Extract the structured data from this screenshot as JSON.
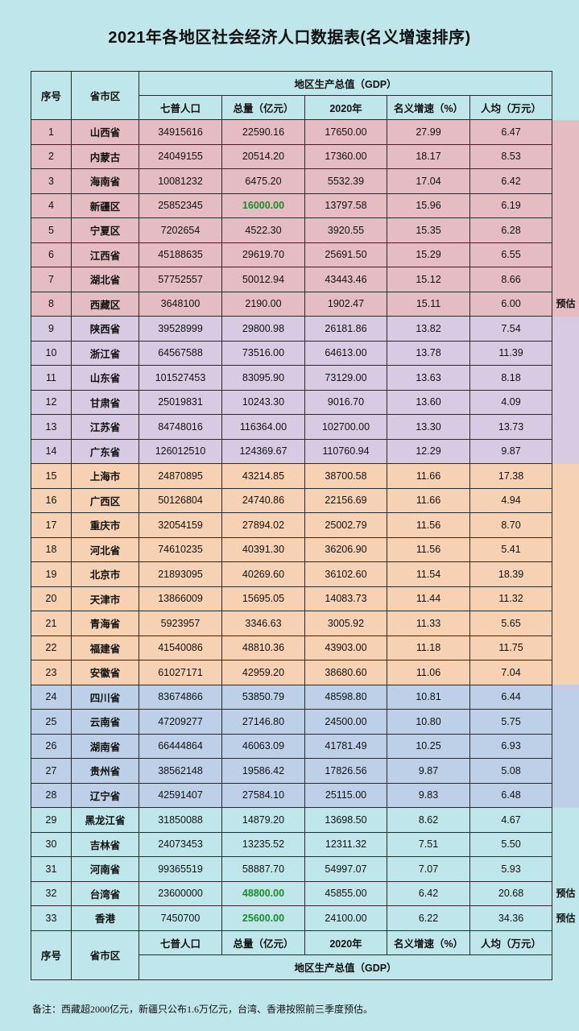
{
  "title": "2021年各地区社会经济人口数据表(名义增速排序)",
  "header": {
    "idx": "序号",
    "province": "省市区",
    "gdp_group": "地区生产总值（GDP）",
    "population": "七普人口",
    "gdp_total": "总量（亿元）",
    "gdp_2020": "2020年",
    "growth": "名义增速（%）",
    "per_capita": "人均（万元）"
  },
  "rows": [
    {
      "idx": "1",
      "province": "山西省",
      "population": "34915616",
      "gdp": "22590.16",
      "gdp2020": "17650.00",
      "growth": "27.99",
      "per": "6.47"
    },
    {
      "idx": "2",
      "province": "内蒙古",
      "population": "24049155",
      "gdp": "20514.20",
      "gdp2020": "17360.00",
      "growth": "18.17",
      "per": "8.53"
    },
    {
      "idx": "3",
      "province": "海南省",
      "population": "10081232",
      "gdp": "6475.20",
      "gdp2020": "5532.39",
      "growth": "17.04",
      "per": "6.42"
    },
    {
      "idx": "4",
      "province": "新疆区",
      "population": "25852345",
      "gdp": "16000.00",
      "gdp2020": "13797.58",
      "growth": "15.96",
      "per": "6.19"
    },
    {
      "idx": "5",
      "province": "宁夏区",
      "population": "7202654",
      "gdp": "4522.30",
      "gdp2020": "3920.55",
      "growth": "15.35",
      "per": "6.28"
    },
    {
      "idx": "6",
      "province": "江西省",
      "population": "45188635",
      "gdp": "29619.70",
      "gdp2020": "25691.50",
      "growth": "15.29",
      "per": "6.55"
    },
    {
      "idx": "7",
      "province": "湖北省",
      "population": "57752557",
      "gdp": "50012.94",
      "gdp2020": "43443.46",
      "growth": "15.12",
      "per": "8.66"
    },
    {
      "idx": "8",
      "province": "西藏区",
      "population": "3648100",
      "gdp": "2190.00",
      "gdp2020": "1902.47",
      "growth": "15.11",
      "per": "6.00"
    },
    {
      "idx": "9",
      "province": "陕西省",
      "population": "39528999",
      "gdp": "29800.98",
      "gdp2020": "26181.86",
      "growth": "13.82",
      "per": "7.54"
    },
    {
      "idx": "10",
      "province": "浙江省",
      "population": "64567588",
      "gdp": "73516.00",
      "gdp2020": "64613.00",
      "growth": "13.78",
      "per": "11.39"
    },
    {
      "idx": "11",
      "province": "山东省",
      "population": "101527453",
      "gdp": "83095.90",
      "gdp2020": "73129.00",
      "growth": "13.63",
      "per": "8.18"
    },
    {
      "idx": "12",
      "province": "甘肃省",
      "population": "25019831",
      "gdp": "10243.30",
      "gdp2020": "9016.70",
      "growth": "13.60",
      "per": "4.09"
    },
    {
      "idx": "13",
      "province": "江苏省",
      "population": "84748016",
      "gdp": "116364.00",
      "gdp2020": "102700.00",
      "growth": "13.30",
      "per": "13.73"
    },
    {
      "idx": "14",
      "province": "广东省",
      "population": "126012510",
      "gdp": "124369.67",
      "gdp2020": "110760.94",
      "growth": "12.29",
      "per": "9.87"
    },
    {
      "idx": "15",
      "province": "上海市",
      "population": "24870895",
      "gdp": "43214.85",
      "gdp2020": "38700.58",
      "growth": "11.66",
      "per": "17.38"
    },
    {
      "idx": "16",
      "province": "广西区",
      "population": "50126804",
      "gdp": "24740.86",
      "gdp2020": "22156.69",
      "growth": "11.66",
      "per": "4.94"
    },
    {
      "idx": "17",
      "province": "重庆市",
      "population": "32054159",
      "gdp": "27894.02",
      "gdp2020": "25002.79",
      "growth": "11.56",
      "per": "8.70"
    },
    {
      "idx": "18",
      "province": "河北省",
      "population": "74610235",
      "gdp": "40391.30",
      "gdp2020": "36206.90",
      "growth": "11.56",
      "per": "5.41"
    },
    {
      "idx": "19",
      "province": "北京市",
      "population": "21893095",
      "gdp": "40269.60",
      "gdp2020": "36102.60",
      "growth": "11.54",
      "per": "18.39"
    },
    {
      "idx": "20",
      "province": "天津市",
      "population": "13866009",
      "gdp": "15695.05",
      "gdp2020": "14083.73",
      "growth": "11.44",
      "per": "11.32"
    },
    {
      "idx": "21",
      "province": "青海省",
      "population": "5923957",
      "gdp": "3346.63",
      "gdp2020": "3005.92",
      "growth": "11.33",
      "per": "5.65"
    },
    {
      "idx": "22",
      "province": "福建省",
      "population": "41540086",
      "gdp": "48810.36",
      "gdp2020": "43903.00",
      "growth": "11.18",
      "per": "11.75"
    },
    {
      "idx": "23",
      "province": "安徽省",
      "population": "61027171",
      "gdp": "42959.20",
      "gdp2020": "38680.60",
      "growth": "11.06",
      "per": "7.04"
    },
    {
      "idx": "24",
      "province": "四川省",
      "population": "83674866",
      "gdp": "53850.79",
      "gdp2020": "48598.80",
      "growth": "10.81",
      "per": "6.44"
    },
    {
      "idx": "25",
      "province": "云南省",
      "population": "47209277",
      "gdp": "27146.80",
      "gdp2020": "24500.00",
      "growth": "10.80",
      "per": "5.75"
    },
    {
      "idx": "26",
      "province": "湖南省",
      "population": "66444864",
      "gdp": "46063.09",
      "gdp2020": "41781.49",
      "growth": "10.25",
      "per": "6.93"
    },
    {
      "idx": "27",
      "province": "贵州省",
      "population": "38562148",
      "gdp": "19586.42",
      "gdp2020": "17826.56",
      "growth": "9.87",
      "per": "5.08"
    },
    {
      "idx": "28",
      "province": "辽宁省",
      "population": "42591407",
      "gdp": "27584.10",
      "gdp2020": "25115.00",
      "growth": "9.83",
      "per": "6.48"
    },
    {
      "idx": "29",
      "province": "黑龙江省",
      "population": "31850088",
      "gdp": "14879.20",
      "gdp2020": "13698.50",
      "growth": "8.62",
      "per": "4.67"
    },
    {
      "idx": "30",
      "province": "吉林省",
      "population": "24073453",
      "gdp": "13235.52",
      "gdp2020": "12311.32",
      "growth": "7.51",
      "per": "5.50"
    },
    {
      "idx": "31",
      "province": "河南省",
      "population": "99365519",
      "gdp": "58887.70",
      "gdp2020": "54997.07",
      "growth": "7.07",
      "per": "5.93"
    },
    {
      "idx": "32",
      "province": "台湾省",
      "population": "23600000",
      "gdp": "48800.00",
      "gdp2020": "45855.00",
      "growth": "6.42",
      "per": "20.68"
    },
    {
      "idx": "33",
      "province": "香港",
      "population": "7450700",
      "gdp": "25600.00",
      "gdp2020": "24100.00",
      "growth": "6.22",
      "per": "34.36"
    }
  ],
  "groups": [
    {
      "rows": [
        1,
        8
      ],
      "color": "#e5bcc1"
    },
    {
      "rows": [
        9,
        14
      ],
      "color": "#d6cbe3"
    },
    {
      "rows": [
        15,
        23
      ],
      "color": "#f7d1b3"
    },
    {
      "rows": [
        24,
        28
      ],
      "color": "#bdd0e7"
    },
    {
      "rows": [
        29,
        33
      ],
      "color": "#bfe6ea"
    }
  ],
  "green_cells": [
    "4",
    "32",
    "33"
  ],
  "side_notes": [
    {
      "row": "8",
      "text": "预估"
    },
    {
      "row": "32",
      "text": "预估"
    },
    {
      "row": "33",
      "text": "预估"
    }
  ],
  "footnote": "备注：西藏超2000亿元，新疆只公布1.6万亿元，台湾、香港按照前三季度预估。"
}
